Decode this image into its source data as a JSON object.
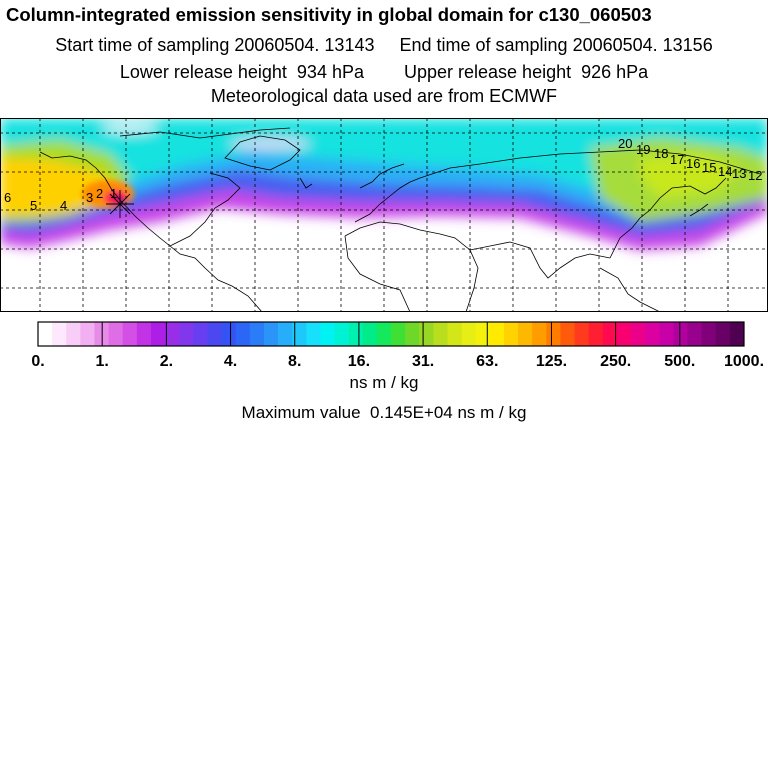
{
  "header": {
    "title": "Column-integrated emission sensitivity in global domain for c130_060503",
    "line2": "Start time of sampling 20060504. 13143     End time of sampling 20060504. 13156",
    "line3": "Lower release height  934 hPa        Upper release height  926 hPa",
    "line4": "Meteorological data used are from ECMWF"
  },
  "map": {
    "plume_labels": [
      "6",
      "5",
      "4",
      "3",
      "2",
      "1",
      "20",
      "19",
      "18",
      "17",
      "16",
      "15",
      "14",
      "13",
      "12"
    ],
    "land_color": "#ffffff",
    "coast_color": "#000000",
    "grid": "dashed"
  },
  "colorbar": {
    "labels": [
      "0.",
      "1.",
      "2.",
      "4.",
      "8.",
      "16.",
      "31.",
      "63.",
      "125.",
      "250.",
      "500.",
      "1000."
    ],
    "colors": [
      "#ffffff",
      "#fde8fd",
      "#f8cdf8",
      "#f2b0f2",
      "#e88ae8",
      "#df6de6",
      "#d44fe6",
      "#c233e6",
      "#ad1fe6",
      "#9a2ee8",
      "#8138ec",
      "#673ff0",
      "#4b48f2",
      "#3553f5",
      "#2c66f6",
      "#2a7cf7",
      "#2a94f8",
      "#27aefa",
      "#1ec8fb",
      "#16e0fc",
      "#00f2f2",
      "#00f2d4",
      "#00f0b0",
      "#00ec88",
      "#14e85c",
      "#3ee036",
      "#6ed82a",
      "#98d824",
      "#b8de1e",
      "#d2e618",
      "#e6ee14",
      "#f4f20c",
      "#ffea00",
      "#ffd200",
      "#ffb800",
      "#ff9c00",
      "#ff7c00",
      "#ff5a0c",
      "#ff3a1e",
      "#ff1e32",
      "#ff0a50",
      "#f80070",
      "#ec008a",
      "#dc00a0",
      "#c800a8",
      "#b0009e",
      "#98008e",
      "#80007a",
      "#680066",
      "#500050"
    ]
  },
  "unit": "ns m / kg",
  "max_value": "Maximum value  0.145E+04 ns m / kg"
}
